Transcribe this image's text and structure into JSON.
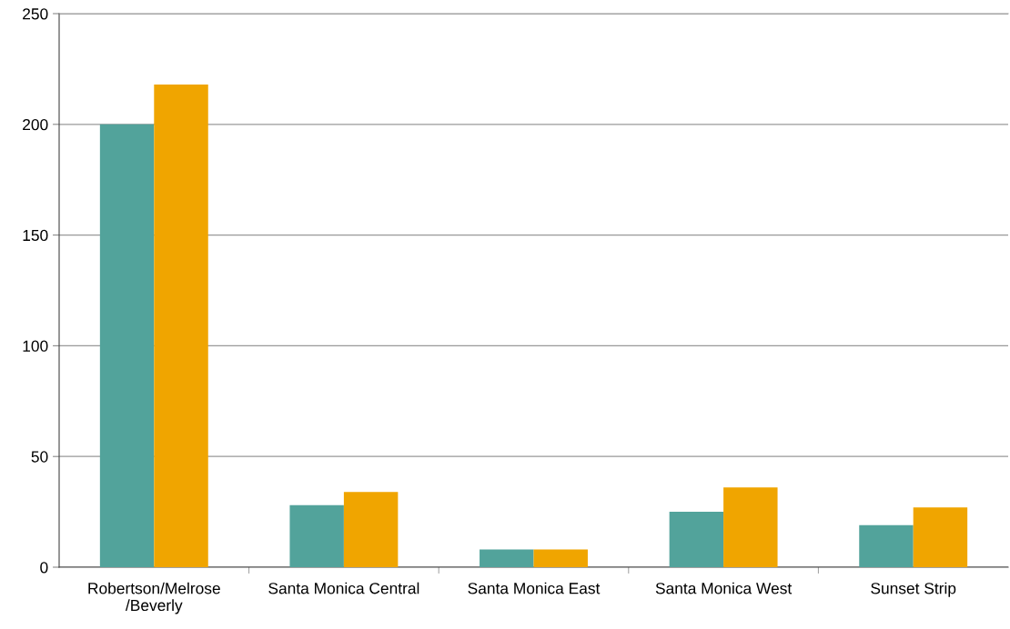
{
  "chart_data": {
    "type": "bar",
    "categories": [
      "Robertson/Melrose/Beverly",
      "Santa Monica Central",
      "Santa Monica East",
      "Santa Monica West",
      "Sunset Strip"
    ],
    "series": [
      {
        "color": "#52a39b",
        "values": [
          200,
          28,
          8,
          25,
          19
        ]
      },
      {
        "color": "#f0a500",
        "values": [
          218,
          34,
          8,
          36,
          27
        ]
      }
    ],
    "ylim": [
      0,
      250
    ],
    "yticks": [
      0,
      50,
      100,
      150,
      200,
      250
    ],
    "grid": "y"
  }
}
